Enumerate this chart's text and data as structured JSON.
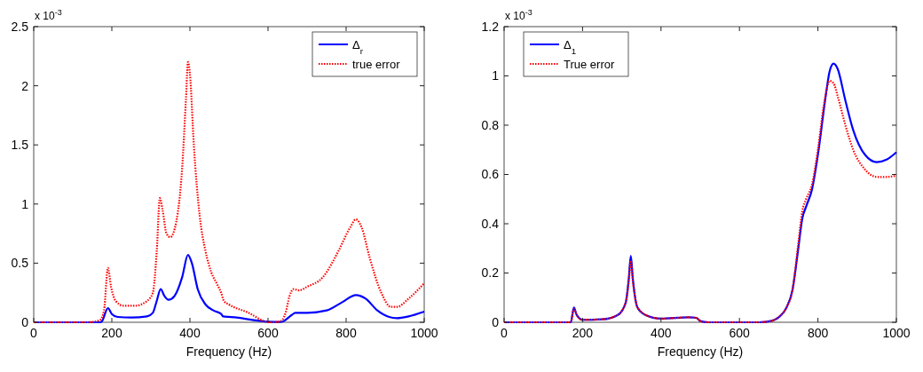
{
  "chart_data": [
    {
      "type": "line",
      "xlabel": "Frequency (Hz)",
      "annotations": [
        "x 10$^{-3}$"
      ],
      "xlim": [
        0,
        1000
      ],
      "xticks": [
        0,
        200,
        400,
        600,
        800,
        1000
      ],
      "ylim": [
        0,
        2.5
      ],
      "yticks": [
        0,
        0.5,
        1,
        1.5,
        2,
        2.5
      ],
      "legend": "top right",
      "grid": false,
      "series": [
        {
          "name": "Δ$_{r}$",
          "color": "#0000ff",
          "line_style": "solid",
          "x": [
            0,
            170,
            175,
            190,
            200,
            215,
            250,
            290,
            305,
            315,
            325,
            335,
            345,
            360,
            380,
            395,
            405,
            420,
            440,
            460,
            480,
            485,
            520,
            560,
            600,
            630,
            640,
            660,
            670,
            700,
            750,
            790,
            825,
            850,
            880,
            910,
            930,
            960,
            1000
          ],
          "values": [
            0,
            0,
            0.01,
            0.12,
            0.07,
            0.045,
            0.04,
            0.05,
            0.08,
            0.18,
            0.28,
            0.22,
            0.19,
            0.22,
            0.38,
            0.57,
            0.5,
            0.28,
            0.15,
            0.1,
            0.07,
            0.05,
            0.04,
            0.02,
            0.005,
            0.003,
            0.01,
            0.06,
            0.08,
            0.08,
            0.1,
            0.17,
            0.23,
            0.2,
            0.1,
            0.045,
            0.035,
            0.05,
            0.09
          ]
        },
        {
          "name": "true error",
          "color": "#ff0000",
          "line_style": "dotted",
          "x": [
            0,
            140,
            170,
            180,
            190,
            198,
            210,
            230,
            260,
            290,
            305,
            315,
            323,
            330,
            340,
            350,
            365,
            380,
            390,
            395,
            400,
            410,
            425,
            440,
            455,
            470,
            480,
            487,
            500,
            550,
            590,
            600,
            630,
            645,
            655,
            665,
            680,
            700,
            740,
            780,
            810,
            825,
            840,
            860,
            890,
            915,
            930,
            960,
            1000
          ],
          "values": [
            0,
            0,
            0.02,
            0.1,
            0.46,
            0.3,
            0.18,
            0.14,
            0.14,
            0.18,
            0.25,
            0.6,
            1.05,
            0.95,
            0.75,
            0.72,
            0.85,
            1.3,
            1.9,
            2.2,
            2.1,
            1.5,
            0.9,
            0.6,
            0.42,
            0.32,
            0.25,
            0.18,
            0.15,
            0.08,
            0.01,
            0,
            0.005,
            0.08,
            0.22,
            0.28,
            0.27,
            0.3,
            0.38,
            0.6,
            0.8,
            0.87,
            0.8,
            0.55,
            0.25,
            0.13,
            0.13,
            0.2,
            0.33
          ]
        }
      ]
    },
    {
      "type": "line",
      "xlabel": "Frequency (Hz)",
      "annotations": [
        "x 10$^{-3}$"
      ],
      "xlim": [
        0,
        1000
      ],
      "xticks": [
        0,
        200,
        400,
        600,
        800,
        1000
      ],
      "ylim": [
        0,
        1.2
      ],
      "yticks": [
        0,
        0.2,
        0.4,
        0.6,
        0.8,
        1,
        1.2
      ],
      "legend": "top left",
      "grid": false,
      "series": [
        {
          "name": "Δ$_{1}$",
          "color": "#0000ff",
          "line_style": "solid",
          "x": [
            0,
            170,
            178,
            185,
            200,
            250,
            290,
            310,
            318,
            323,
            328,
            340,
            360,
            400,
            470,
            490,
            500,
            520,
            650,
            680,
            700,
            720,
            735,
            750,
            760,
            770,
            785,
            800,
            820,
            830,
            840,
            850,
            870,
            890,
            920,
            950,
            975,
            1000
          ],
          "values": [
            0,
            0,
            0.06,
            0.03,
            0.01,
            0.012,
            0.03,
            0.08,
            0.18,
            0.27,
            0.18,
            0.06,
            0.03,
            0.015,
            0.02,
            0.018,
            0.005,
            0,
            0,
            0.005,
            0.02,
            0.06,
            0.13,
            0.3,
            0.42,
            0.47,
            0.54,
            0.68,
            0.92,
            1.02,
            1.05,
            1.03,
            0.9,
            0.78,
            0.68,
            0.65,
            0.66,
            0.69
          ]
        },
        {
          "name": "True error",
          "color": "#ff0000",
          "line_style": "dotted",
          "x": [
            0,
            170,
            178,
            185,
            200,
            250,
            290,
            310,
            318,
            323,
            328,
            340,
            360,
            400,
            470,
            490,
            500,
            520,
            650,
            680,
            700,
            720,
            735,
            750,
            760,
            770,
            785,
            800,
            815,
            830,
            840,
            850,
            870,
            890,
            920,
            950,
            975,
            1000
          ],
          "values": [
            0,
            0,
            0.055,
            0.03,
            0.01,
            0.012,
            0.03,
            0.08,
            0.17,
            0.25,
            0.17,
            0.06,
            0.03,
            0.015,
            0.02,
            0.018,
            0.005,
            0,
            0,
            0.005,
            0.02,
            0.06,
            0.13,
            0.32,
            0.45,
            0.5,
            0.56,
            0.7,
            0.88,
            0.98,
            0.97,
            0.92,
            0.8,
            0.7,
            0.62,
            0.59,
            0.59,
            0.595
          ]
        }
      ]
    }
  ]
}
